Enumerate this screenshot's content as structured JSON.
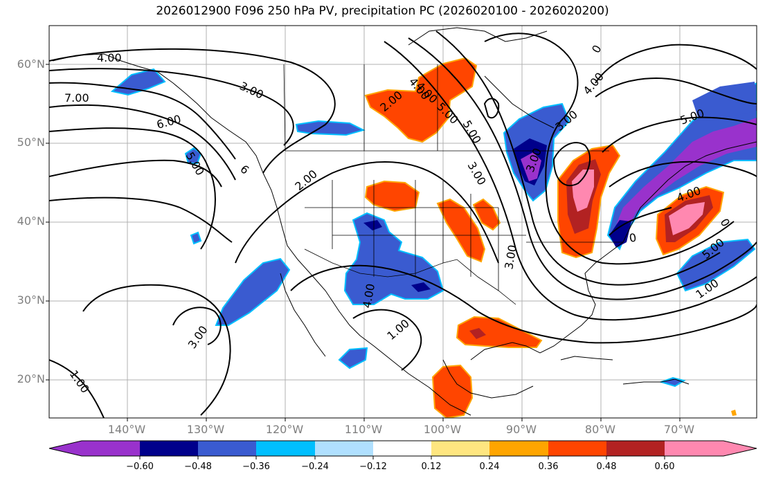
{
  "title": "2026012900 F096 250 hPa PV, precipitation PC (2026020100 - 2026020200)",
  "lat_labels": [
    "60°N",
    "50°N",
    "40°N",
    "30°N",
    "20°N"
  ],
  "lon_labels": [
    "140°W",
    "130°W",
    "120°W",
    "110°W",
    "100°W",
    "90°W",
    "80°W",
    "70°W"
  ],
  "contour_labels": [
    "4.00",
    "7.00",
    "6.00",
    "3.00",
    "5.00",
    "6",
    "2.00",
    "5.00",
    "3.00",
    "4.00",
    "2.00",
    "0",
    "3.00",
    "4.00",
    "5.00",
    "3.00",
    "4.00",
    "3.00",
    "0",
    "0",
    "1.00",
    "5.00",
    "1.00",
    "1.00",
    "3.00",
    "5.00",
    "4.00",
    "4.00"
  ],
  "colorbar": {
    "tick_labels": [
      "−0.60",
      "−0.48",
      "−0.36",
      "−0.24",
      "−0.12",
      "0.12",
      "0.24",
      "0.36",
      "0.48",
      "0.60"
    ],
    "colors": [
      "#9932cc",
      "#00008b",
      "#3a5bd0",
      "#00bfff",
      "#b0e0ff",
      "#ffffff",
      "#ffe680",
      "#ffa500",
      "#ff4500",
      "#b22222",
      "#ff88b0"
    ]
  }
}
